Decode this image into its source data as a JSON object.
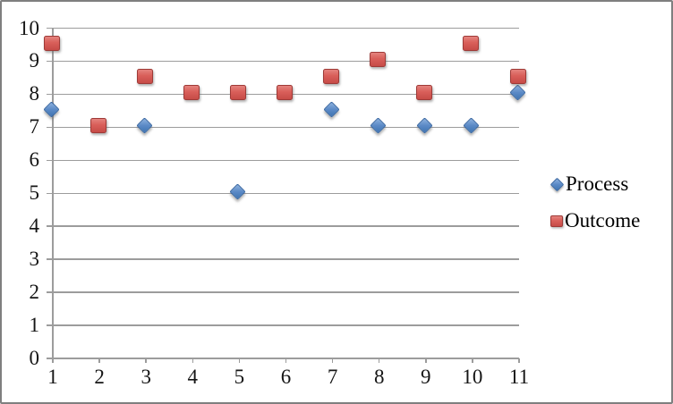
{
  "chart_data": {
    "type": "scatter",
    "x": [
      1,
      2,
      3,
      4,
      5,
      6,
      7,
      8,
      9,
      10,
      11
    ],
    "series": [
      {
        "name": "Process",
        "marker": "diamond",
        "color": "#4f81bd",
        "values": [
          7.5,
          null,
          7,
          null,
          5,
          null,
          7.5,
          7,
          7,
          7,
          8
        ]
      },
      {
        "name": "Outcome",
        "marker": "square",
        "color": "#c0504d",
        "values": [
          9.5,
          7,
          8.5,
          8,
          8,
          8,
          8.5,
          9,
          8,
          9.5,
          8.5
        ]
      }
    ],
    "title": "",
    "xlabel": "",
    "ylabel": "",
    "xlim": [
      1,
      11
    ],
    "ylim": [
      0,
      10
    ],
    "xticks": [
      1,
      2,
      3,
      4,
      5,
      6,
      7,
      8,
      9,
      10,
      11
    ],
    "yticks": [
      0,
      1,
      2,
      3,
      4,
      5,
      6,
      7,
      8,
      9,
      10
    ],
    "grid": true,
    "legend_position": "right",
    "grid_color": "#9c9c9c",
    "frame_color": "#7f7f7f",
    "notes": "No Process markers visible at x=2,4,6; Outcome squares drawn on top of Process diamonds where they overlap."
  }
}
